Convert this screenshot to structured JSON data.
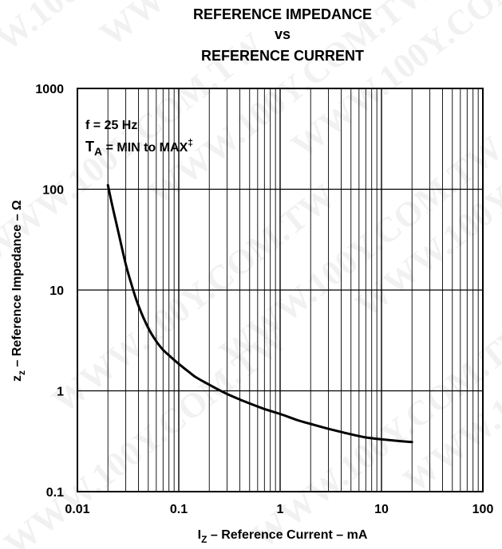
{
  "chart_data": {
    "type": "line",
    "title_lines": [
      "REFERENCE IMPEDANCE",
      "vs",
      "REFERENCE CURRENT"
    ],
    "xlabel": {
      "main": "I",
      "sub": "Z",
      "rest": " – Reference Current – mA"
    },
    "ylabel": {
      "main": "z",
      "sub": "z",
      "rest": " – Reference Impedance – Ω"
    },
    "x_scale": "log",
    "y_scale": "log",
    "xlim": [
      0.01,
      100
    ],
    "ylim": [
      0.1,
      1000
    ],
    "x_tick_labels": [
      "0.01",
      "0.1",
      "1",
      "10",
      "100"
    ],
    "y_tick_labels": [
      "0.1",
      "1",
      "10",
      "100",
      "1000"
    ],
    "grid": true,
    "annotations": [
      {
        "text": "f = 25 Hz"
      },
      {
        "main": "T",
        "sub": "A",
        "rest": " = MIN to MAX",
        "sup": "‡"
      }
    ],
    "series": [
      {
        "x": [
          0.02,
          0.022,
          0.025,
          0.03,
          0.035,
          0.04,
          0.05,
          0.06,
          0.07,
          0.08,
          0.1,
          0.13,
          0.15,
          0.2,
          0.25,
          0.3,
          0.4,
          0.5,
          0.7,
          1,
          1.5,
          2,
          3,
          5,
          7,
          10,
          20
        ],
        "y": [
          110,
          70,
          40,
          18,
          10.5,
          7,
          4.2,
          3.1,
          2.55,
          2.25,
          1.85,
          1.5,
          1.35,
          1.15,
          1.02,
          0.93,
          0.82,
          0.75,
          0.66,
          0.59,
          0.51,
          0.47,
          0.42,
          0.37,
          0.345,
          0.33,
          0.31
        ]
      }
    ]
  },
  "watermark": "WWW.100Y.COM.TW"
}
